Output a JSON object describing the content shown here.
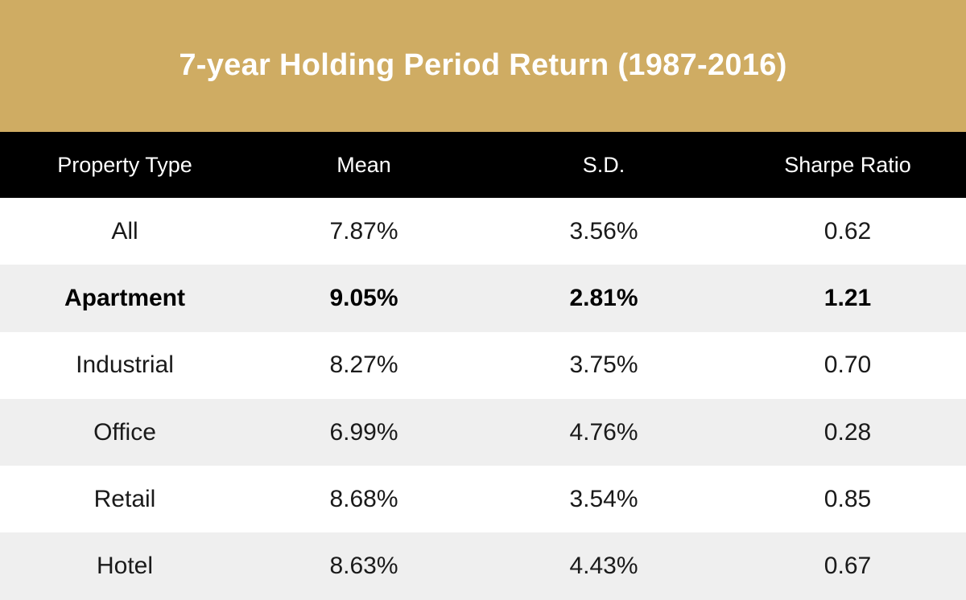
{
  "title": "7-year Holding Period Return (1987-2016)",
  "colors": {
    "title_background": "#cfac63",
    "header_background": "#000000",
    "alt_row_background": "#efefef"
  },
  "table": {
    "headers": [
      "Property Type",
      "Mean",
      "S.D.",
      "Sharpe Ratio"
    ],
    "rows": [
      [
        "All",
        "7.87%",
        "3.56%",
        "0.62"
      ],
      [
        "Apartment",
        "9.05%",
        "2.81%",
        "1.21"
      ],
      [
        "Industrial",
        "8.27%",
        "3.75%",
        "0.70"
      ],
      [
        "Office",
        "6.99%",
        "4.76%",
        "0.28"
      ],
      [
        "Retail",
        "8.68%",
        "3.54%",
        "0.85"
      ],
      [
        "Hotel",
        "8.63%",
        "4.43%",
        "0.67"
      ]
    ],
    "highlighted_row": "Apartment"
  }
}
